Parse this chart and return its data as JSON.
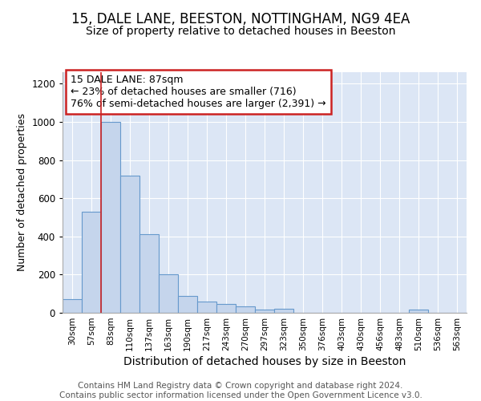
{
  "title": "15, DALE LANE, BEESTON, NOTTINGHAM, NG9 4EA",
  "subtitle": "Size of property relative to detached houses in Beeston",
  "xlabel": "Distribution of detached houses by size in Beeston",
  "ylabel": "Number of detached properties",
  "bin_labels": [
    "30sqm",
    "57sqm",
    "83sqm",
    "110sqm",
    "137sqm",
    "163sqm",
    "190sqm",
    "217sqm",
    "243sqm",
    "270sqm",
    "297sqm",
    "323sqm",
    "350sqm",
    "376sqm",
    "403sqm",
    "430sqm",
    "456sqm",
    "483sqm",
    "510sqm",
    "536sqm",
    "563sqm"
  ],
  "bar_heights": [
    70,
    530,
    1000,
    720,
    410,
    200,
    90,
    60,
    45,
    35,
    15,
    20,
    0,
    0,
    0,
    0,
    0,
    0,
    15,
    0,
    0
  ],
  "bar_color": "#c5d5ec",
  "bar_edge_color": "#6699cc",
  "vline_color": "#cc2222",
  "annotation_text": "15 DALE LANE: 87sqm\n← 23% of detached houses are smaller (716)\n76% of semi-detached houses are larger (2,391) →",
  "annotation_box_color": "#cc2222",
  "ylim": [
    0,
    1260
  ],
  "yticks": [
    0,
    200,
    400,
    600,
    800,
    1000,
    1200
  ],
  "footer": "Contains HM Land Registry data © Crown copyright and database right 2024.\nContains public sector information licensed under the Open Government Licence v3.0.",
  "title_fontsize": 12,
  "subtitle_fontsize": 10,
  "xlabel_fontsize": 10,
  "ylabel_fontsize": 9,
  "footer_fontsize": 7.5,
  "axes_bg_color": "#dce6f5",
  "background_color": "#ffffff",
  "grid_color": "#ffffff"
}
